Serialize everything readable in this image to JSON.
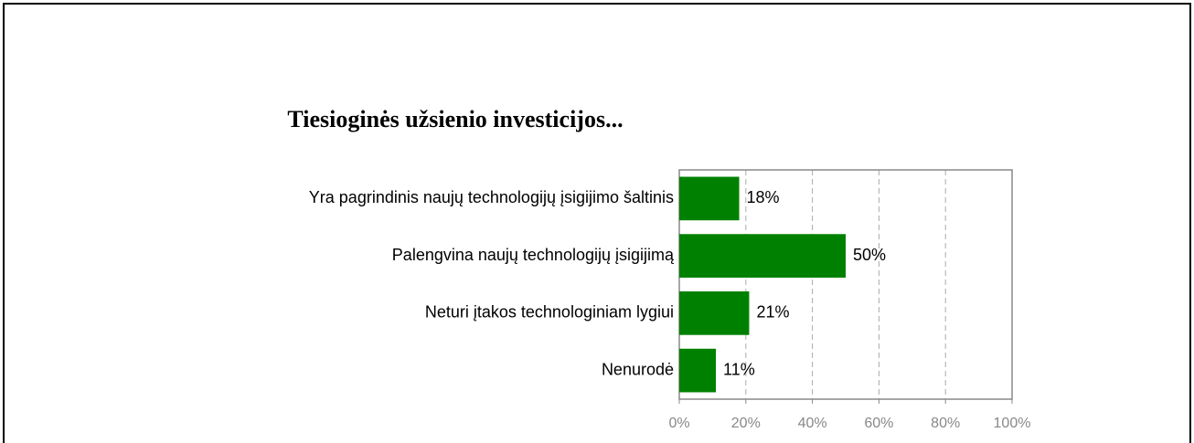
{
  "chart_data": {
    "type": "hbar",
    "title": "Tiesioginės užsienio investicijos...",
    "categories": [
      "Yra pagrindinis naujų technologijų įsigijimo šaltinis",
      "Palengvina naujų technologijų įsigijimą",
      "Neturi įtakos technologiniam lygiui",
      "Nenurodė"
    ],
    "values": [
      18,
      50,
      21,
      11
    ],
    "value_labels": [
      "18%",
      "50%",
      "21%",
      "11%"
    ],
    "color": "#008000",
    "xlim": [
      0,
      100
    ],
    "xticks": [
      {
        "value": 0,
        "label": "0%"
      },
      {
        "value": 20,
        "label": "20%"
      },
      {
        "value": 40,
        "label": "40%"
      },
      {
        "value": 60,
        "label": "60%"
      },
      {
        "value": 80,
        "label": "80%"
      },
      {
        "value": 100,
        "label": "100%"
      }
    ],
    "grid": true
  }
}
